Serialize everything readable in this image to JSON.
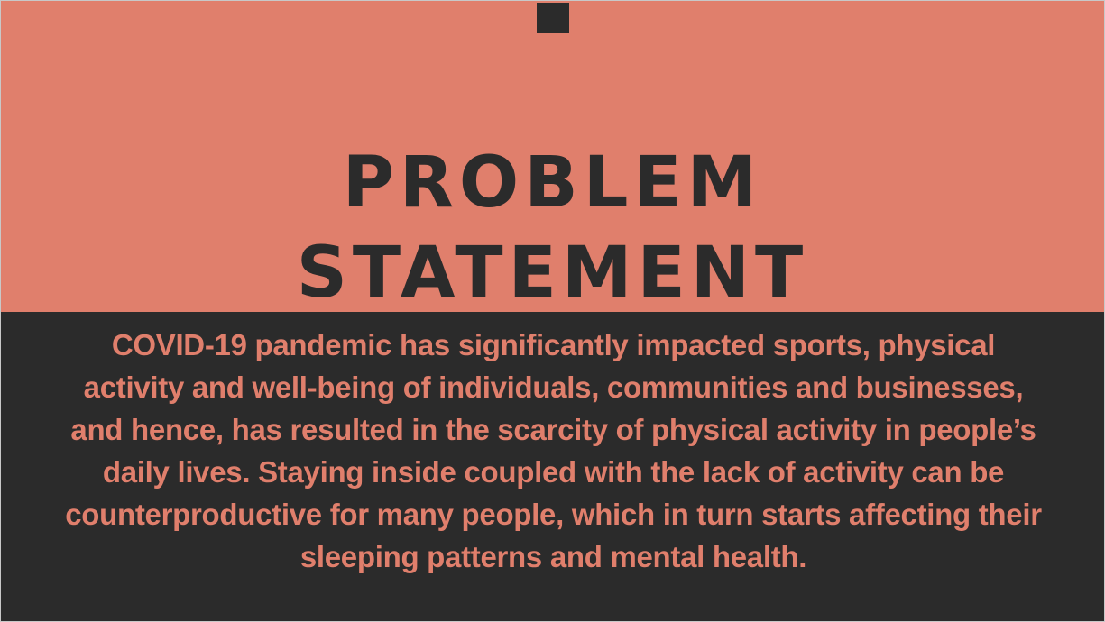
{
  "slide": {
    "title_line_1": "PROBLEM",
    "title_line_2": "STATEMENT",
    "body": "COVID-19 pandemic has significantly impacted sports, physical activity and well-being of individuals, communities and businesses, and hence, has resulted in the scarcity of physical activity in people’s daily lives. Staying inside coupled with the lack of activity can be counterproductive for many people, which in turn starts affecting their sleeping patterns and mental health."
  },
  "colors": {
    "accent": "#e07f6c",
    "dark": "#2b2b2b"
  }
}
